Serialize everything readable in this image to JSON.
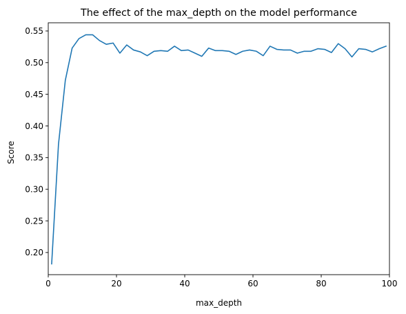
{
  "chart_data": {
    "type": "line",
    "title": "The effect of the max_depth on the model performance",
    "xlabel": "max_depth",
    "ylabel": "Score",
    "xlim": [
      0,
      100
    ],
    "ylim": [
      0.165,
      0.563
    ],
    "xticks": [
      0,
      20,
      40,
      60,
      80,
      100
    ],
    "xtick_labels": [
      "0",
      "20",
      "40",
      "60",
      "80",
      "100"
    ],
    "yticks": [
      0.2,
      0.25,
      0.3,
      0.35,
      0.4,
      0.45,
      0.5,
      0.55
    ],
    "ytick_labels": [
      "0.20",
      "0.25",
      "0.30",
      "0.35",
      "0.40",
      "0.45",
      "0.50",
      "0.55"
    ],
    "grid": false,
    "line_color": "#1f77b4",
    "series": [
      {
        "x": [
          1,
          3,
          5,
          7,
          9,
          11,
          13,
          15,
          17,
          19,
          21,
          23,
          25,
          27,
          29,
          31,
          33,
          35,
          37,
          39,
          41,
          43,
          45,
          47,
          49,
          51,
          53,
          55,
          57,
          59,
          61,
          63,
          65,
          67,
          69,
          71,
          73,
          75,
          77,
          79,
          81,
          83,
          85,
          87,
          89,
          91,
          93,
          95,
          97,
          99
        ],
        "values": [
          0.182,
          0.371,
          0.472,
          0.523,
          0.538,
          0.544,
          0.544,
          0.535,
          0.529,
          0.531,
          0.515,
          0.528,
          0.52,
          0.517,
          0.511,
          0.518,
          0.519,
          0.518,
          0.526,
          0.519,
          0.52,
          0.515,
          0.51,
          0.523,
          0.519,
          0.519,
          0.518,
          0.513,
          0.518,
          0.52,
          0.518,
          0.511,
          0.526,
          0.521,
          0.52,
          0.52,
          0.515,
          0.518,
          0.518,
          0.522,
          0.521,
          0.516,
          0.53,
          0.522,
          0.509,
          0.522,
          0.521,
          0.517,
          0.522,
          0.526
        ]
      }
    ]
  }
}
